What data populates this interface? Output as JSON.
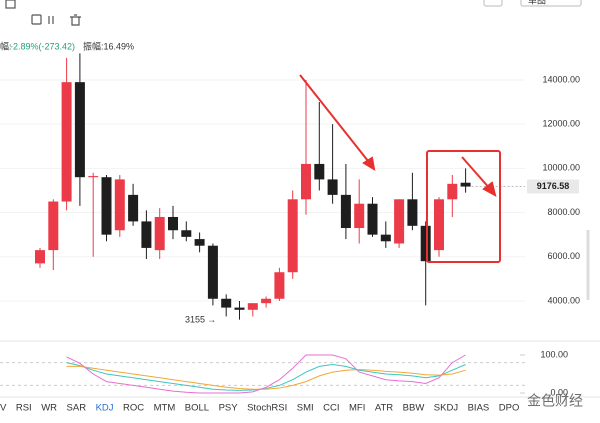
{
  "toolbar": {
    "change_label": "幅:",
    "change_value": "-2.89%(-273.42)",
    "amplitude": "振幅:16.49%",
    "button": "单图"
  },
  "chart_data": [
    {
      "type": "candlestick",
      "up_color": "#eb3b48",
      "down_color": "#1e1e1e",
      "open": [
        5700,
        6300,
        8500,
        13900,
        9600,
        9600,
        7200,
        8800,
        7600,
        6300,
        7800,
        7200,
        6800,
        6500,
        4100,
        3700,
        3600,
        3900,
        4100,
        5300,
        8600,
        10200,
        9500,
        8800,
        7300,
        8400,
        7000,
        6600,
        8600,
        7400,
        6300,
        8600,
        9350
      ],
      "high": [
        6400,
        8600,
        15000,
        15200,
        9800,
        9700,
        9700,
        9300,
        8100,
        8200,
        8300,
        7600,
        7100,
        6600,
        4300,
        4000,
        3900,
        4200,
        5500,
        9000,
        14000,
        13000,
        12000,
        10200,
        9500,
        8700,
        7600,
        8600,
        9800,
        7600,
        8700,
        9700,
        10000
      ],
      "low": [
        5500,
        5400,
        8100,
        8300,
        6000,
        6700,
        6900,
        7400,
        5900,
        5900,
        6800,
        6700,
        6200,
        3800,
        3300,
        3155,
        3300,
        3700,
        4000,
        5000,
        7900,
        9000,
        8400,
        6800,
        6600,
        6900,
        6400,
        6400,
        7200,
        3800,
        6000,
        7800,
        8900
      ],
      "close": [
        6300,
        8500,
        13900,
        9600,
        9650,
        7000,
        9500,
        7600,
        6400,
        7800,
        7200,
        6900,
        6500,
        4100,
        3700,
        3600,
        3900,
        4100,
        5300,
        8600,
        10200,
        9500,
        8800,
        7300,
        8400,
        7000,
        6700,
        8600,
        7400,
        5800,
        8600,
        9300,
        9176.58
      ],
      "ylim": [
        2460,
        16260
      ],
      "yticks": [
        {
          "value": 4000,
          "label": "4000.00"
        },
        {
          "value": 6000,
          "label": "6000.00"
        },
        {
          "value": 8000,
          "label": "8000.00"
        },
        {
          "value": 10000,
          "label": "10000.00"
        },
        {
          "value": 12000,
          "label": "12000.00"
        },
        {
          "value": 14000,
          "label": "14000.00"
        }
      ]
    },
    {
      "type": "line",
      "ylim": [
        0,
        100
      ],
      "yticks": [
        {
          "value": 100,
          "label": "100.00"
        },
        {
          "value": 0,
          "label": "0.00"
        }
      ],
      "levels": [
        80,
        20
      ],
      "series": [
        {
          "color": "#3cc6c0",
          "values": [
            null,
            null,
            80,
            72,
            60,
            50,
            45,
            40,
            35,
            30,
            25,
            20,
            15,
            10,
            8,
            7,
            8,
            12,
            20,
            35,
            55,
            70,
            75,
            70,
            60,
            55,
            50,
            48,
            45,
            40,
            45,
            60,
            75
          ]
        },
        {
          "color": "#f2a735",
          "values": [
            null,
            null,
            70,
            70,
            65,
            60,
            55,
            50,
            45,
            40,
            35,
            30,
            25,
            20,
            15,
            12,
            10,
            10,
            13,
            20,
            30,
            45,
            55,
            60,
            62,
            60,
            57,
            55,
            52,
            48,
            47,
            50,
            60
          ]
        },
        {
          "color": "#e56fd2",
          "values": [
            null,
            null,
            95,
            78,
            50,
            30,
            25,
            20,
            15,
            10,
            5,
            2,
            0,
            0,
            0,
            0,
            3,
            15,
            35,
            65,
            100,
            100,
            100,
            90,
            55,
            45,
            35,
            32,
            30,
            25,
            40,
            80,
            100
          ]
        }
      ]
    }
  ],
  "tabs": [
    "V",
    "RSI",
    "WR",
    "SAR",
    "KDJ",
    "ROC",
    "MTM",
    "BOLL",
    "PSY",
    "StochRSI",
    "SMI",
    "CCI",
    "MFI",
    "ATR",
    "BBW",
    "SKDJ",
    "BIAS",
    "DPO"
  ],
  "active_tab_index": 4,
  "watermark": "金色财经"
}
